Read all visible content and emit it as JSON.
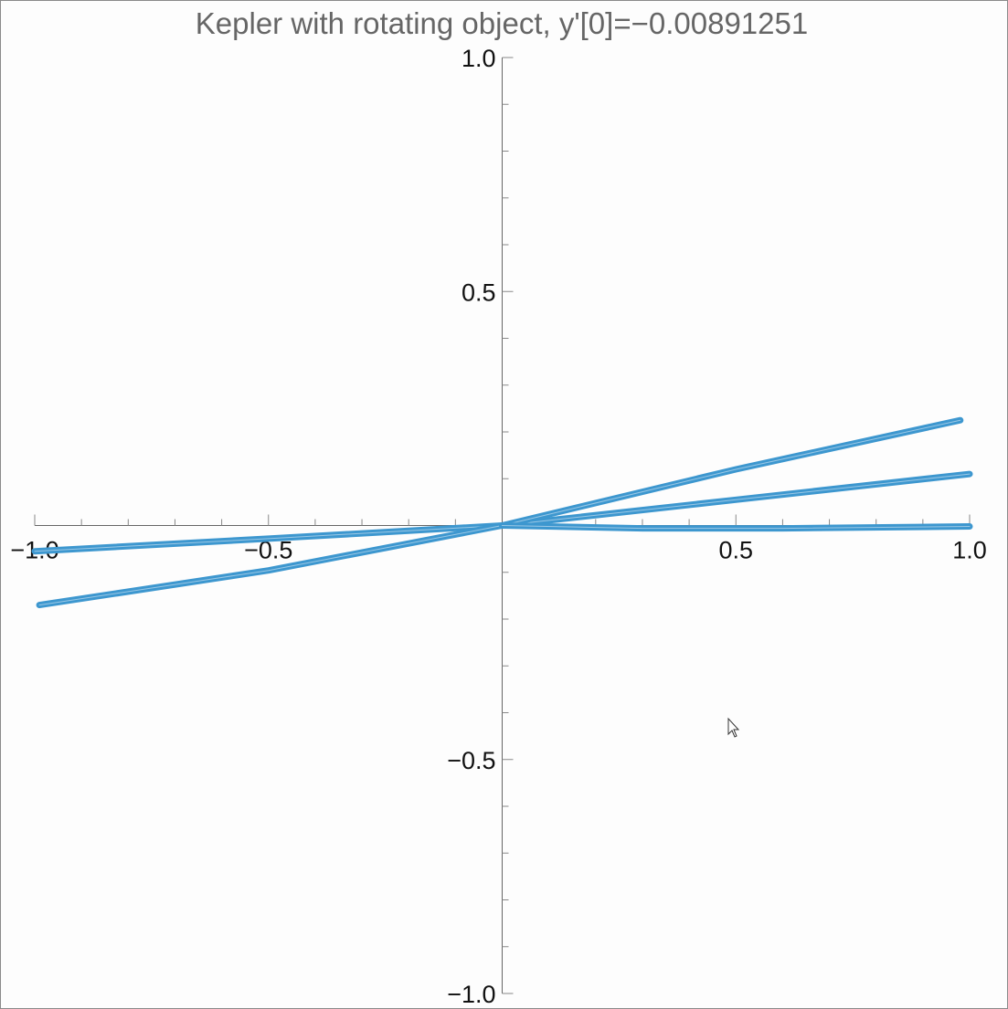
{
  "chart_data": {
    "type": "line",
    "title": "Kepler with rotating object, y'[0]=−0.00891251",
    "xlabel": "",
    "ylabel": "",
    "xlim": [
      -1.0,
      1.0
    ],
    "ylim": [
      -1.0,
      1.0
    ],
    "x_ticks": [
      -1.0,
      -0.5,
      0.5,
      1.0
    ],
    "y_ticks": [
      -1.0,
      -0.5,
      0.5,
      1.0
    ],
    "x_tick_labels": [
      "−1.0",
      "−0.5",
      "0.5",
      "1.0"
    ],
    "y_tick_labels": [
      "−1.0",
      "−0.5",
      "0.5",
      "1.0"
    ],
    "minor_tick_step": 0.1,
    "grid": false,
    "color": "#3d97cf",
    "series": [
      {
        "x": [
          -1.0,
          -0.5,
          0.0,
          0.5,
          1.0
        ],
        "y": [
          -0.055,
          -0.028,
          0.0,
          0.055,
          0.11
        ]
      },
      {
        "x": [
          -0.99,
          -0.5,
          0.0,
          0.5,
          0.98
        ],
        "y": [
          -0.17,
          -0.096,
          0.0,
          0.12,
          0.225
        ]
      },
      {
        "x": [
          0.0,
          0.3,
          0.6,
          1.0
        ],
        "y": [
          0.0,
          -0.006,
          -0.006,
          -0.002
        ]
      }
    ]
  },
  "pointer": {
    "icon": "mouse-pointer-icon"
  }
}
